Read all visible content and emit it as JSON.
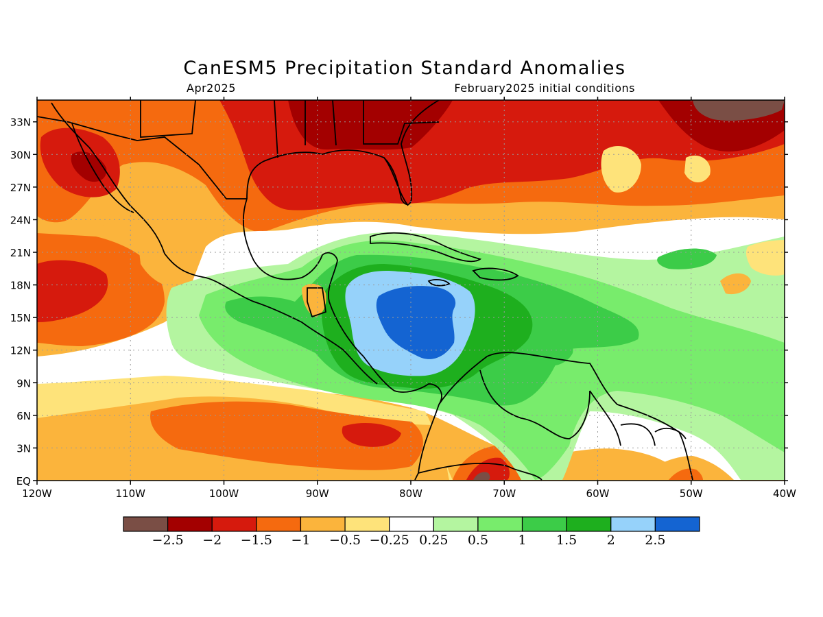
{
  "title": "CanESM5 Precipitation Standard Anomalies",
  "subtitle_left": "Apr2025",
  "subtitle_right": "February2025 initial conditions",
  "map": {
    "lon_range": [
      -120,
      -40
    ],
    "lat_range": [
      0,
      35
    ],
    "lon_ticks": [
      {
        "value": -120,
        "label": "120W"
      },
      {
        "value": -110,
        "label": "110W"
      },
      {
        "value": -100,
        "label": "100W"
      },
      {
        "value": -90,
        "label": "90W"
      },
      {
        "value": -80,
        "label": "80W"
      },
      {
        "value": -70,
        "label": "70W"
      },
      {
        "value": -60,
        "label": "60W"
      },
      {
        "value": -50,
        "label": "50W"
      },
      {
        "value": -40,
        "label": "40W"
      }
    ],
    "lat_ticks": [
      {
        "value": 0,
        "label": "EQ"
      },
      {
        "value": 3,
        "label": "3N"
      },
      {
        "value": 6,
        "label": "6N"
      },
      {
        "value": 9,
        "label": "9N"
      },
      {
        "value": 12,
        "label": "12N"
      },
      {
        "value": 15,
        "label": "15N"
      },
      {
        "value": 18,
        "label": "18N"
      },
      {
        "value": 21,
        "label": "21N"
      },
      {
        "value": 24,
        "label": "24N"
      },
      {
        "value": 27,
        "label": "27N"
      },
      {
        "value": 30,
        "label": "30N"
      },
      {
        "value": 33,
        "label": "33N"
      }
    ],
    "grid": "dotted",
    "colors": {
      "lt_m25": "#7a4e45",
      "m25_m2": "#a30000",
      "m2_m15": "#d61a0d",
      "m15_m1": "#f56a0f",
      "m1_m05": "#fbb43c",
      "m05_m025": "#fee37a",
      "neutral": "#ffffff",
      "p025_p05": "#b4f5a0",
      "p05_p1": "#78ec6c",
      "p1_p15": "#3ccc48",
      "p15_p2": "#1eaf1e",
      "p2_p25": "#96d2fa",
      "gt_p25": "#1464d2"
    }
  },
  "colorbar": {
    "colors": [
      "#7a4e45",
      "#a30000",
      "#d61a0d",
      "#f56a0f",
      "#fbb43c",
      "#fee37a",
      "#ffffff",
      "#b4f5a0",
      "#78ec6c",
      "#3ccc48",
      "#1eaf1e",
      "#96d2fa",
      "#1464d2"
    ],
    "labels": [
      "−2.5",
      "−2",
      "−1.5",
      "−1",
      "−0.5",
      "−0.25",
      "0.25",
      "0.5",
      "1",
      "1.5",
      "2",
      "2.5"
    ]
  }
}
